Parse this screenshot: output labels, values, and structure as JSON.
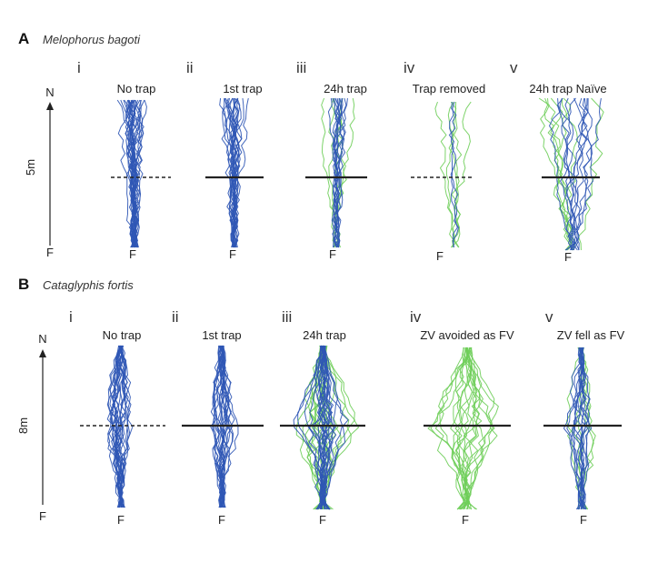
{
  "colors": {
    "blue": "#2f56b5",
    "green": "#6fce5a",
    "trap": "#222222"
  },
  "panels": [
    {
      "letter": "A",
      "species": "Melophorus bagoti",
      "scale_label": "5m",
      "north_label": "N",
      "feeder_label": "F",
      "subpanels": [
        {
          "numeral": "i",
          "caption": "No trap",
          "f": "F",
          "trap": "dashed",
          "blue": 26,
          "green": 0
        },
        {
          "numeral": "ii",
          "caption": "1st trap",
          "f": "F",
          "trap": "solid",
          "blue": 20,
          "green": 0
        },
        {
          "numeral": "iii",
          "caption": "24h trap",
          "f": "F",
          "trap": "solid",
          "blue": 12,
          "green": 6
        },
        {
          "numeral": "iv",
          "caption": "Trap removed",
          "f": "F",
          "trap": "dashed",
          "blue": 2,
          "green": 5
        },
        {
          "numeral": "v",
          "caption": "24h trap Naïve",
          "f": "F",
          "trap": "solid",
          "blue": 12,
          "green": 7
        }
      ]
    },
    {
      "letter": "B",
      "species": "Cataglyphis fortis",
      "scale_label": "8m",
      "north_label": "N",
      "feeder_label": "F",
      "subpanels": [
        {
          "numeral": "i",
          "caption": "No trap",
          "f": "F",
          "trap": "dashed",
          "blue": 24,
          "green": 0
        },
        {
          "numeral": "ii",
          "caption": "1st trap",
          "f": "F",
          "trap": "solid",
          "blue": 22,
          "green": 0
        },
        {
          "numeral": "iii",
          "caption": "24h trap",
          "f": "F",
          "trap": "solid",
          "blue": 24,
          "green": 18
        },
        {
          "numeral": "iv",
          "caption": "ZV avoided as FV",
          "f": "F",
          "trap": "solid",
          "blue": 0,
          "green": 20
        },
        {
          "numeral": "v",
          "caption": "ZV fell as FV",
          "f": "F",
          "trap": "solid",
          "blue": 14,
          "green": 6
        }
      ]
    }
  ]
}
